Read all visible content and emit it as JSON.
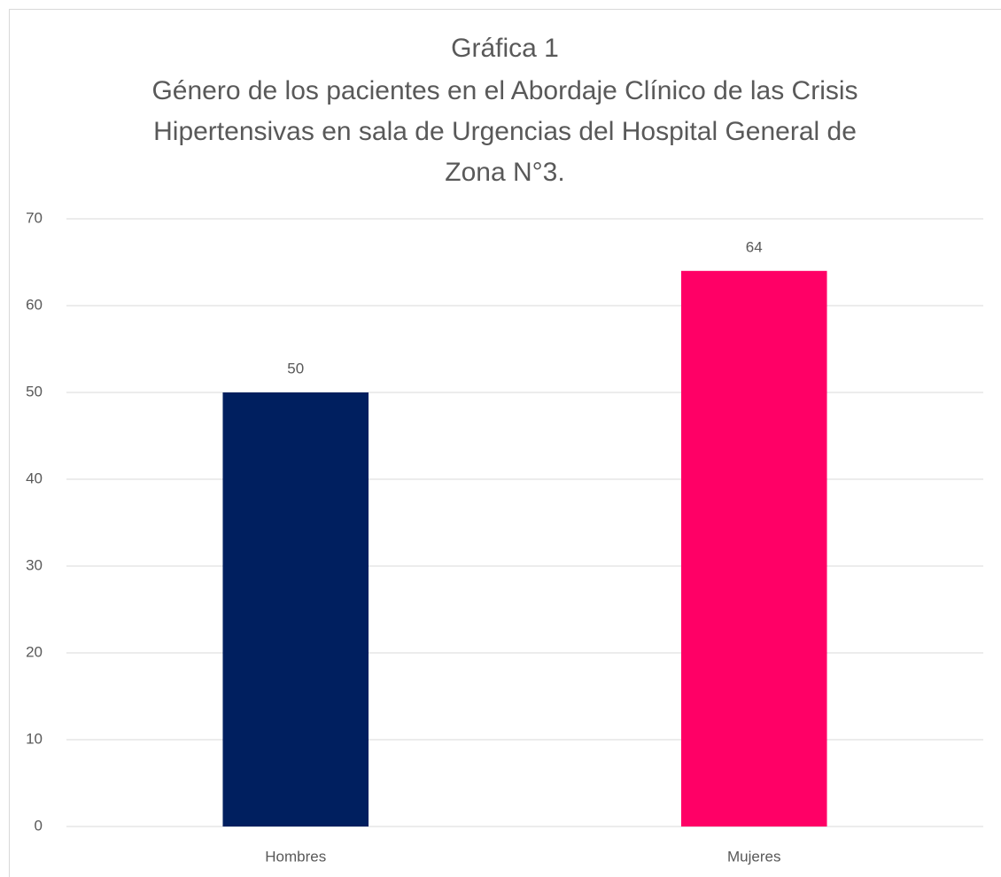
{
  "chart_data": {
    "type": "bar",
    "title": "Gráfica 1",
    "subtitle": [
      "Género de los pacientes en el Abordaje Clínico de las Crisis",
      "Hipertensivas en sala de Urgencias del Hospital General de",
      "Zona N°3."
    ],
    "categories": [
      "Hombres",
      "Mujeres"
    ],
    "values": [
      50,
      64
    ],
    "colors": [
      "#001f5f",
      "#ff0066"
    ],
    "ylim": [
      0,
      70
    ],
    "yticks": [
      0,
      10,
      20,
      30,
      40,
      50,
      60,
      70
    ],
    "grid": true
  }
}
